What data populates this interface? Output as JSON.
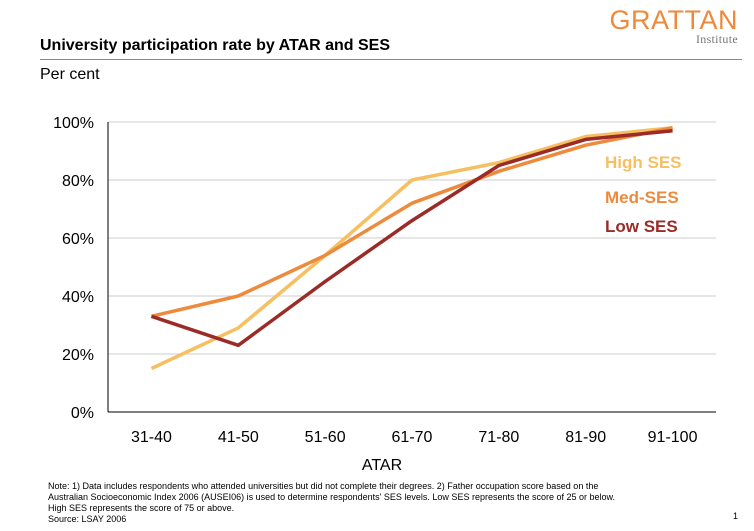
{
  "logo": {
    "name": "GRATTAN",
    "sub": "Institute"
  },
  "title": "University participation rate by ATAR and SES",
  "unit_label": "Per cent",
  "chart_data": {
    "type": "line",
    "title": "University participation rate by ATAR and SES",
    "xlabel": "ATAR",
    "ylabel": "Per cent",
    "categories": [
      "31-40",
      "41-50",
      "51-60",
      "61-70",
      "71-80",
      "81-90",
      "91-100"
    ],
    "y_ticks": [
      "0%",
      "20%",
      "40%",
      "60%",
      "80%",
      "100%"
    ],
    "ylim": [
      0,
      100
    ],
    "grid": true,
    "legend_position": "right, inline",
    "series": [
      {
        "name": "High SES",
        "color": "#f6c062",
        "values": [
          15,
          29,
          54,
          80,
          86,
          95,
          98
        ]
      },
      {
        "name": "Med-SES",
        "color": "#ee8a3c",
        "values": [
          33,
          40,
          54,
          72,
          83,
          92,
          98
        ]
      },
      {
        "name": "Low SES",
        "color": "#9b2b26",
        "values": [
          33,
          23,
          45,
          66,
          85,
          94,
          97
        ]
      }
    ]
  },
  "notes": [
    "Note: 1) Data includes respondents who attended universities but did not complete their degrees. 2) Father occupation score based on the",
    "Australian Socioeconomic Index 2006 (AUSEI06) is used to determine respondents' SES levels. Low SES represents the score of 25 or below.",
    "High SES represents the score of 75 or above.",
    "Source: LSAY 2006"
  ],
  "page_number": "1"
}
